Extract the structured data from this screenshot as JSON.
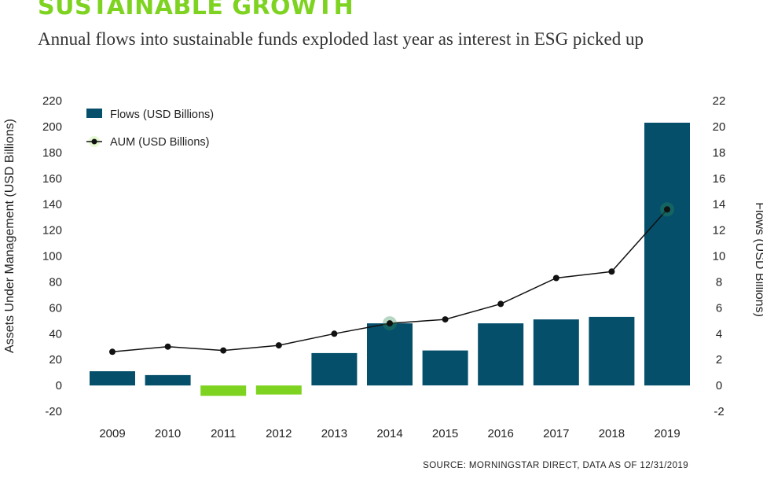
{
  "header": {
    "title": "SUSTAINABLE GROWTH",
    "subtitle": "Annual flows into sustainable funds exploded last year as interest in ESG picked up"
  },
  "source": "SOURCE: MORNINGSTAR DIRECT, DATA AS OF 12/31/2019",
  "colors": {
    "title_green": "#7ed321",
    "bar_positive": "#054f6b",
    "bar_negative": "#7ed321",
    "line": "#111111"
  },
  "chart_data": {
    "type": "bar",
    "categories": [
      "2009",
      "2010",
      "2011",
      "2012",
      "2013",
      "2014",
      "2015",
      "2016",
      "2017",
      "2018",
      "2019"
    ],
    "series": [
      {
        "name": "Flows (USD Billions)",
        "type": "bar",
        "axis": "right",
        "values": [
          1.1,
          0.8,
          -0.8,
          -0.7,
          2.5,
          4.8,
          2.7,
          4.8,
          5.1,
          5.3,
          20.3
        ]
      },
      {
        "name": "AUM (USD Billions)",
        "type": "line",
        "axis": "left",
        "values": [
          26,
          30,
          27,
          31,
          40,
          48,
          51,
          63,
          83,
          88,
          136
        ]
      }
    ],
    "y_left": {
      "label": "Assets Under Management (USD Billions)",
      "range": [
        -20,
        220
      ],
      "ticks": [
        "220",
        "200",
        "180",
        "160",
        "140",
        "120",
        "100",
        "80",
        "60",
        "40",
        "20",
        "0",
        "-20"
      ]
    },
    "y_right": {
      "label": "Flows (USD Billions)",
      "range": [
        -2,
        22
      ],
      "ticks": [
        "22",
        "20",
        "18",
        "16",
        "14",
        "12",
        "10",
        "8",
        "6",
        "4",
        "2",
        "0",
        "-2"
      ]
    },
    "legend": {
      "position": "top-left"
    },
    "grid": false
  }
}
